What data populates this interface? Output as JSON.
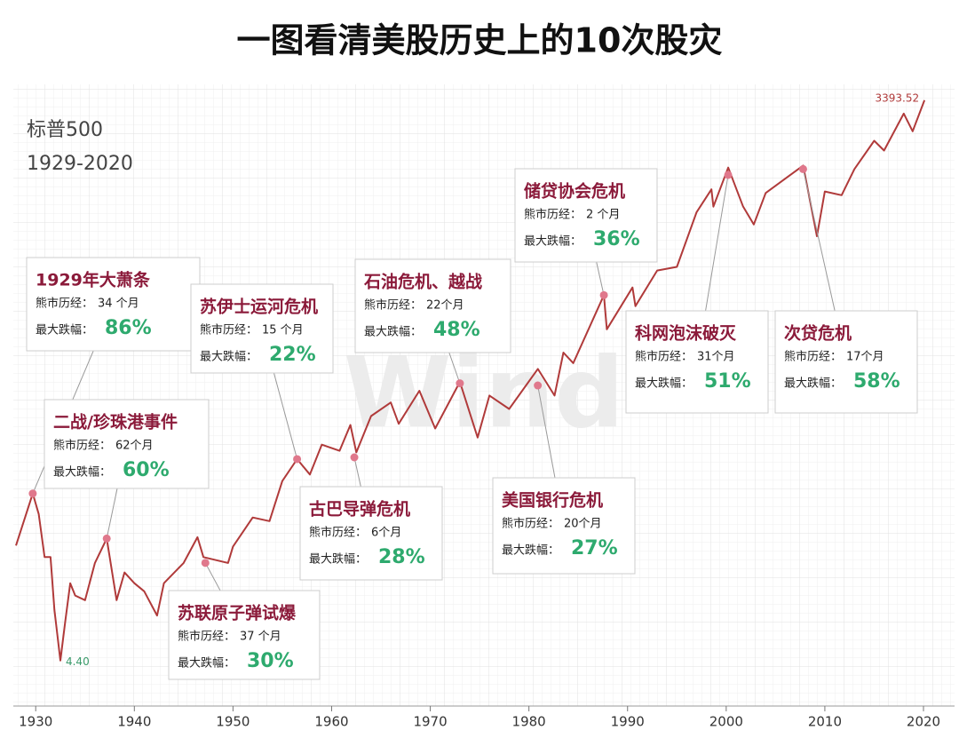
{
  "chart_data": {
    "type": "line",
    "title": "一图看清美股历史上的10次股灾",
    "series_title": "标普500",
    "period": "1929-2020",
    "watermark": "Wind",
    "log_scale": true,
    "grid": true,
    "color": "#b03a3a",
    "event_color": "#e0788c",
    "x": [
      1928,
      1929.7,
      1930.3,
      1930.9,
      1931.5,
      1931.9,
      1932.5,
      1933,
      1933.5,
      1934,
      1935,
      1936,
      1937.2,
      1938.2,
      1939,
      1940,
      1941,
      1942.3,
      1943,
      1945,
      1946.4,
      1947,
      1949.5,
      1950,
      1952,
      1953.7,
      1955,
      1956.5,
      1957.8,
      1959,
      1960.8,
      1961.9,
      1962.5,
      1964,
      1966,
      1966.8,
      1968.9,
      1970.5,
      1973,
      1974.8,
      1976,
      1978,
      1980.9,
      1982.6,
      1983.5,
      1984.5,
      1987.6,
      1987.9,
      1990.5,
      1990.8,
      1993,
      1995,
      1997,
      1998.5,
      1998.7,
      2000.2,
      2001.7,
      2002.8,
      2004,
      2007.8,
      2009.2,
      2010,
      2011.7,
      2013,
      2015,
      2016,
      2018,
      2018.9,
      2020.1
    ],
    "values": [
      17.2,
      31.9,
      25,
      15,
      15,
      8,
      4.4,
      7,
      11,
      9.5,
      9,
      14,
      18.7,
      9,
      12.5,
      11,
      10,
      7.5,
      11,
      14,
      19,
      15,
      14,
      17,
      24,
      23,
      37,
      48,
      40,
      57,
      53,
      72,
      52,
      80,
      94,
      73,
      108,
      69,
      120,
      62,
      102,
      87,
      140,
      102,
      170,
      150,
      336,
      224,
      368,
      295,
      450,
      470,
      900,
      1180,
      960,
      1527,
      965,
      777,
      1130,
      1565,
      676,
      1150,
      1100,
      1500,
      2100,
      1870,
      2900,
      2350,
      3393.52
    ],
    "value_labels": [
      null,
      null,
      null,
      null,
      null,
      null,
      "4.40",
      null,
      null,
      null,
      null,
      null,
      null,
      null,
      null,
      null,
      null,
      null,
      null,
      null,
      null,
      null,
      null,
      null,
      null,
      null,
      null,
      null,
      null,
      null,
      null,
      null,
      null,
      null,
      null,
      null,
      null,
      null,
      null,
      null,
      null,
      null,
      null,
      null,
      null,
      null,
      null,
      null,
      null,
      null,
      null,
      null,
      null,
      null,
      null,
      null,
      null,
      null,
      null,
      null,
      null,
      null,
      null,
      null,
      null,
      null,
      null,
      null,
      "3393.52"
    ],
    "xlim": [
      1928,
      2021.8
    ],
    "xticks": [
      1930,
      1940,
      1950,
      1960,
      1970,
      1980,
      1990,
      2000,
      2010,
      2020
    ],
    "ylim": [
      2.7,
      4100
    ],
    "duration_label": "熊市历经：",
    "drop_label": "最大跌幅：",
    "events": [
      {
        "title": "1929年大萧条",
        "duration": "34 个月",
        "drop": "86%",
        "x": 1929.7,
        "y": 31.9
      },
      {
        "title": "二战/珍珠港事件",
        "duration": "62个月",
        "drop": "60%",
        "x": 1937.2,
        "y": 18.7
      },
      {
        "title": "苏联原子弹试爆",
        "duration": "37 个月",
        "drop": "30%",
        "x": 1947.2,
        "y": 14
      },
      {
        "title": "苏伊士运河危机",
        "duration": "15 个月",
        "drop": "22%",
        "x": 1956.5,
        "y": 48
      },
      {
        "title": "古巴导弹危机",
        "duration": "6个月",
        "drop": "28%",
        "x": 1962.3,
        "y": 49
      },
      {
        "title": "石油危机、越战",
        "duration": "22个月",
        "drop": "48%",
        "x": 1973,
        "y": 118
      },
      {
        "title": "美国银行危机",
        "duration": "20个月",
        "drop": "27%",
        "x": 1980.9,
        "y": 115
      },
      {
        "title": "储贷协会危机",
        "duration": "2 个月",
        "drop": "36%",
        "x": 1987.6,
        "y": 336
      },
      {
        "title": "科网泡沫破灭",
        "duration": "31个月",
        "drop": "51%",
        "x": 2000.2,
        "y": 1400
      },
      {
        "title": "次贷危机",
        "duration": "17个月",
        "drop": "58%",
        "x": 2007.8,
        "y": 1500
      }
    ]
  }
}
